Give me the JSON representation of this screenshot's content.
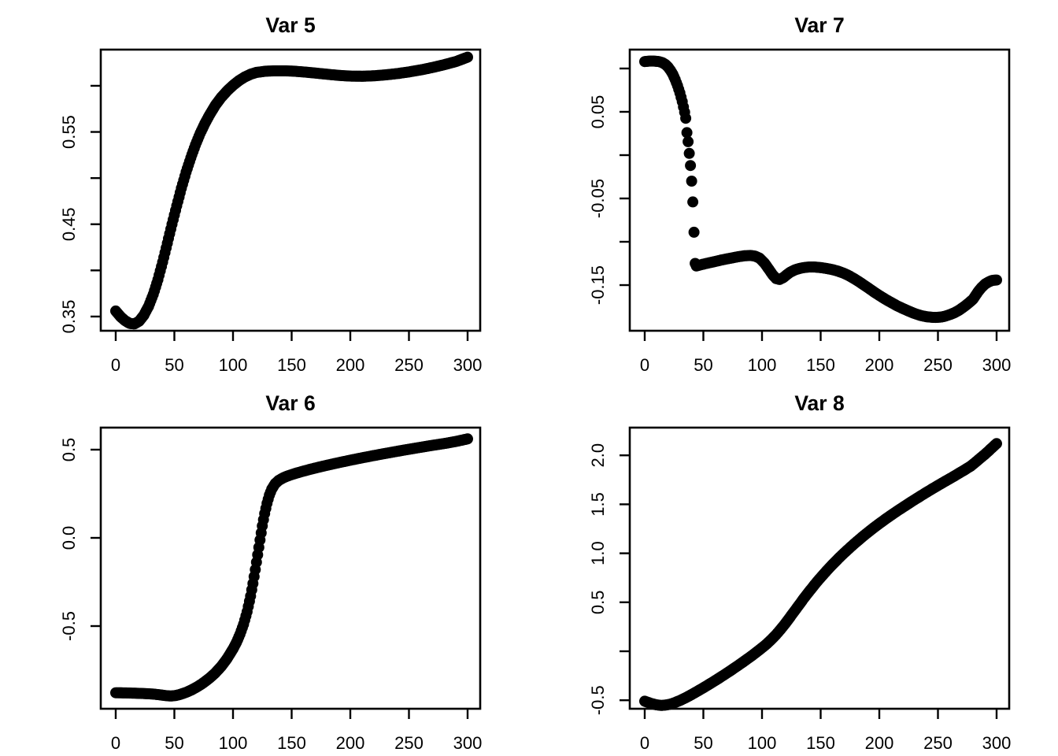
{
  "figure": {
    "background": "#ffffff",
    "point_color": "#000000",
    "axis_color": "#000000",
    "layout": "2x2 grid of scatter plots",
    "grid_lines": "off",
    "legend": "none"
  },
  "chart_data": [
    {
      "type": "scatter",
      "title": "Var 5",
      "position": "top-left",
      "xlabel": "",
      "ylabel": "",
      "x_range": [
        -12.75,
        310.74
      ],
      "y_range": [
        0.3346,
        0.6392
      ],
      "x_ticks": [
        {
          "value": 0,
          "label": "0"
        },
        {
          "value": 50,
          "label": "50"
        },
        {
          "value": 100,
          "label": "100"
        },
        {
          "value": 150,
          "label": "150"
        },
        {
          "value": 200,
          "label": "200"
        },
        {
          "value": 250,
          "label": "250"
        },
        {
          "value": 300,
          "label": "300"
        }
      ],
      "y_ticks": [
        {
          "value": 0.35,
          "label": "0.35"
        },
        {
          "value": 0.4,
          "label": ""
        },
        {
          "value": 0.45,
          "label": "0.45"
        },
        {
          "value": 0.5,
          "label": ""
        },
        {
          "value": 0.55,
          "label": "0.55"
        },
        {
          "value": 0.6,
          "label": ""
        }
      ],
      "points": [
        [
          0,
          0.356
        ],
        [
          4,
          0.35
        ],
        [
          8,
          0.3455
        ],
        [
          12,
          0.3425
        ],
        [
          16,
          0.342
        ],
        [
          20,
          0.345
        ],
        [
          24,
          0.3515
        ],
        [
          28,
          0.361
        ],
        [
          32,
          0.374
        ],
        [
          36,
          0.39
        ],
        [
          40,
          0.409
        ],
        [
          44,
          0.4295
        ],
        [
          48,
          0.45
        ],
        [
          52,
          0.47
        ],
        [
          56,
          0.489
        ],
        [
          60,
          0.5065
        ],
        [
          64,
          0.522
        ],
        [
          68,
          0.536
        ],
        [
          72,
          0.5485
        ],
        [
          76,
          0.559
        ],
        [
          80,
          0.5685
        ],
        [
          85,
          0.579
        ],
        [
          90,
          0.5875
        ],
        [
          95,
          0.5945
        ],
        [
          100,
          0.6005
        ],
        [
          105,
          0.6055
        ],
        [
          110,
          0.6095
        ],
        [
          115,
          0.6125
        ],
        [
          120,
          0.6145
        ],
        [
          128,
          0.6158
        ],
        [
          136,
          0.6162
        ],
        [
          144,
          0.6162
        ],
        [
          152,
          0.6158
        ],
        [
          160,
          0.615
        ],
        [
          170,
          0.6138
        ],
        [
          180,
          0.6125
        ],
        [
          190,
          0.6113
        ],
        [
          200,
          0.6105
        ],
        [
          210,
          0.6103
        ],
        [
          220,
          0.6108
        ],
        [
          230,
          0.6118
        ],
        [
          240,
          0.6132
        ],
        [
          250,
          0.615
        ],
        [
          260,
          0.6172
        ],
        [
          270,
          0.6198
        ],
        [
          280,
          0.6228
        ],
        [
          290,
          0.6262
        ],
        [
          300,
          0.631
        ]
      ]
    },
    {
      "type": "scatter",
      "title": "Var 7",
      "position": "top-right",
      "xlabel": "",
      "ylabel": "",
      "x_range": [
        -12.75,
        310.74
      ],
      "y_range": [
        -0.2027,
        0.1218
      ],
      "x_ticks": [
        {
          "value": 0,
          "label": "0"
        },
        {
          "value": 50,
          "label": "50"
        },
        {
          "value": 100,
          "label": "100"
        },
        {
          "value": 150,
          "label": "150"
        },
        {
          "value": 200,
          "label": "200"
        },
        {
          "value": 250,
          "label": "250"
        },
        {
          "value": 300,
          "label": "300"
        }
      ],
      "y_ticks": [
        {
          "value": 0.1,
          "label": ""
        },
        {
          "value": 0.05,
          "label": "0.05"
        },
        {
          "value": 0.0,
          "label": ""
        },
        {
          "value": -0.05,
          "label": "-0.05"
        },
        {
          "value": -0.1,
          "label": ""
        },
        {
          "value": -0.15,
          "label": "-0.15"
        }
      ],
      "points": [
        [
          0,
          0.108
        ],
        [
          4,
          0.1085
        ],
        [
          8,
          0.1085
        ],
        [
          12,
          0.108
        ],
        [
          15,
          0.1068
        ],
        [
          18,
          0.1043
        ],
        [
          20,
          0.1015
        ],
        [
          22,
          0.0978
        ],
        [
          24,
          0.0932
        ],
        [
          26,
          0.0873
        ],
        [
          28,
          0.0802
        ],
        [
          30,
          0.0718
        ],
        [
          32,
          0.0618
        ],
        [
          34,
          0.0495
        ],
        [
          35,
          0.0425
        ],
        [
          36,
          0.026
        ],
        [
          37,
          0.0155
        ],
        [
          38,
          0.002
        ],
        [
          39,
          -0.012
        ],
        [
          40,
          -0.03
        ],
        [
          41,
          -0.054
        ],
        [
          42,
          -0.089
        ],
        [
          43,
          -0.125
        ],
        [
          44,
          -0.128
        ],
        [
          48,
          -0.1265
        ],
        [
          52,
          -0.1252
        ],
        [
          56,
          -0.124
        ],
        [
          60,
          -0.1228
        ],
        [
          65,
          -0.1212
        ],
        [
          70,
          -0.1198
        ],
        [
          75,
          -0.1185
        ],
        [
          80,
          -0.1172
        ],
        [
          85,
          -0.1162
        ],
        [
          90,
          -0.1158
        ],
        [
          94,
          -0.1165
        ],
        [
          98,
          -0.119
        ],
        [
          102,
          -0.1245
        ],
        [
          106,
          -0.132
        ],
        [
          109,
          -0.138
        ],
        [
          112,
          -0.1425
        ],
        [
          115,
          -0.1435
        ],
        [
          118,
          -0.1415
        ],
        [
          121,
          -0.1382
        ],
        [
          124,
          -0.1352
        ],
        [
          128,
          -0.1325
        ],
        [
          132,
          -0.1308
        ],
        [
          136,
          -0.1297
        ],
        [
          140,
          -0.1292
        ],
        [
          145,
          -0.1292
        ],
        [
          150,
          -0.1298
        ],
        [
          155,
          -0.1308
        ],
        [
          160,
          -0.1322
        ],
        [
          165,
          -0.134
        ],
        [
          170,
          -0.1365
        ],
        [
          175,
          -0.1398
        ],
        [
          180,
          -0.1438
        ],
        [
          185,
          -0.1482
        ],
        [
          190,
          -0.1528
        ],
        [
          195,
          -0.1575
        ],
        [
          200,
          -0.162
        ],
        [
          205,
          -0.1662
        ],
        [
          210,
          -0.17
        ],
        [
          215,
          -0.1738
        ],
        [
          220,
          -0.177
        ],
        [
          225,
          -0.18
        ],
        [
          230,
          -0.1828
        ],
        [
          235,
          -0.185
        ],
        [
          240,
          -0.1865
        ],
        [
          245,
          -0.1872
        ],
        [
          248,
          -0.1873
        ],
        [
          252,
          -0.187
        ],
        [
          256,
          -0.186
        ],
        [
          260,
          -0.1842
        ],
        [
          264,
          -0.182
        ],
        [
          268,
          -0.179
        ],
        [
          272,
          -0.1752
        ],
        [
          276,
          -0.171
        ],
        [
          280,
          -0.1662
        ],
        [
          284,
          -0.158
        ],
        [
          287,
          -0.153
        ],
        [
          290,
          -0.149
        ],
        [
          293,
          -0.1465
        ],
        [
          296,
          -0.1448
        ],
        [
          298,
          -0.1443
        ],
        [
          300,
          -0.1442
        ]
      ]
    },
    {
      "type": "scatter",
      "title": "Var 6",
      "position": "bottom-left",
      "xlabel": "",
      "ylabel": "",
      "x_range": [
        -12.75,
        310.74
      ],
      "y_range": [
        -0.9687,
        0.625
      ],
      "x_ticks": [
        {
          "value": 0,
          "label": "0"
        },
        {
          "value": 50,
          "label": "50"
        },
        {
          "value": 100,
          "label": "100"
        },
        {
          "value": 150,
          "label": "150"
        },
        {
          "value": 200,
          "label": "200"
        },
        {
          "value": 250,
          "label": "250"
        },
        {
          "value": 300,
          "label": "300"
        }
      ],
      "y_ticks": [
        {
          "value": 0.5,
          "label": "0.5"
        },
        {
          "value": 0.0,
          "label": "0.0"
        },
        {
          "value": -0.5,
          "label": "-0.5"
        }
      ],
      "points": [
        [
          0,
          -0.878
        ],
        [
          8,
          -0.879
        ],
        [
          16,
          -0.8805
        ],
        [
          24,
          -0.8825
        ],
        [
          32,
          -0.8855
        ],
        [
          38,
          -0.89
        ],
        [
          43,
          -0.8948
        ],
        [
          47,
          -0.8965
        ],
        [
          51,
          -0.894
        ],
        [
          55,
          -0.8875
        ],
        [
          60,
          -0.876
        ],
        [
          65,
          -0.861
        ],
        [
          70,
          -0.8425
        ],
        [
          75,
          -0.8205
        ],
        [
          80,
          -0.795
        ],
        [
          85,
          -0.765
        ],
        [
          90,
          -0.7285
        ],
        [
          95,
          -0.684
        ],
        [
          100,
          -0.63
        ],
        [
          103,
          -0.5915
        ],
        [
          106,
          -0.546
        ],
        [
          109,
          -0.4895
        ],
        [
          112,
          -0.4185
        ],
        [
          115,
          -0.33
        ],
        [
          117,
          -0.259
        ],
        [
          119,
          -0.18
        ],
        [
          121,
          -0.096
        ],
        [
          123,
          -0.012
        ],
        [
          125,
          0.068
        ],
        [
          127,
          0.138
        ],
        [
          129,
          0.196
        ],
        [
          131,
          0.2425
        ],
        [
          133,
          0.2765
        ],
        [
          136,
          0.3075
        ],
        [
          139,
          0.3258
        ],
        [
          143,
          0.341
        ],
        [
          148,
          0.3542
        ],
        [
          154,
          0.3668
        ],
        [
          160,
          0.3782
        ],
        [
          167,
          0.3905
        ],
        [
          174,
          0.402
        ],
        [
          181,
          0.4128
        ],
        [
          188,
          0.4232
        ],
        [
          195,
          0.4332
        ],
        [
          202,
          0.4428
        ],
        [
          210,
          0.4535
        ],
        [
          218,
          0.4638
        ],
        [
          226,
          0.4738
        ],
        [
          234,
          0.4835
        ],
        [
          242,
          0.493
        ],
        [
          250,
          0.5022
        ],
        [
          258,
          0.5112
        ],
        [
          266,
          0.52
        ],
        [
          274,
          0.5285
        ],
        [
          282,
          0.5368
        ],
        [
          290,
          0.5465
        ],
        [
          295,
          0.5535
        ],
        [
          300,
          0.561
        ]
      ]
    },
    {
      "type": "scatter",
      "title": "Var 8",
      "position": "bottom-right",
      "xlabel": "",
      "ylabel": "",
      "x_range": [
        -12.75,
        310.74
      ],
      "y_range": [
        -0.5868,
        2.283
      ],
      "x_ticks": [
        {
          "value": 0,
          "label": "0"
        },
        {
          "value": 50,
          "label": "50"
        },
        {
          "value": 100,
          "label": "100"
        },
        {
          "value": 150,
          "label": "150"
        },
        {
          "value": 200,
          "label": "200"
        },
        {
          "value": 250,
          "label": "250"
        },
        {
          "value": 300,
          "label": "300"
        }
      ],
      "y_ticks": [
        {
          "value": 2.0,
          "label": "2.0"
        },
        {
          "value": 1.5,
          "label": "1.5"
        },
        {
          "value": 1.0,
          "label": "1.0"
        },
        {
          "value": 0.5,
          "label": "0.5"
        },
        {
          "value": 0.0,
          "label": ""
        },
        {
          "value": -0.5,
          "label": "-0.5"
        }
      ],
      "points": [
        [
          0,
          -0.51
        ],
        [
          5,
          -0.531
        ],
        [
          10,
          -0.547
        ],
        [
          14,
          -0.553
        ],
        [
          18,
          -0.549
        ],
        [
          22,
          -0.539
        ],
        [
          26,
          -0.523
        ],
        [
          30,
          -0.503
        ],
        [
          35,
          -0.474
        ],
        [
          40,
          -0.442
        ],
        [
          45,
          -0.408
        ],
        [
          50,
          -0.373
        ],
        [
          55,
          -0.337
        ],
        [
          60,
          -0.3
        ],
        [
          65,
          -0.262
        ],
        [
          70,
          -0.223
        ],
        [
          75,
          -0.183
        ],
        [
          80,
          -0.142
        ],
        [
          85,
          -0.1
        ],
        [
          90,
          -0.057
        ],
        [
          95,
          -0.012
        ],
        [
          100,
          0.035
        ],
        [
          104,
          0.075
        ],
        [
          108,
          0.12
        ],
        [
          112,
          0.17
        ],
        [
          116,
          0.225
        ],
        [
          120,
          0.285
        ],
        [
          124,
          0.35
        ],
        [
          128,
          0.415
        ],
        [
          132,
          0.48
        ],
        [
          136,
          0.545
        ],
        [
          140,
          0.607
        ],
        [
          144,
          0.667
        ],
        [
          148,
          0.725
        ],
        [
          152,
          0.78
        ],
        [
          156,
          0.833
        ],
        [
          160,
          0.884
        ],
        [
          165,
          0.945
        ],
        [
          170,
          1.003
        ],
        [
          175,
          1.058
        ],
        [
          180,
          1.111
        ],
        [
          185,
          1.162
        ],
        [
          190,
          1.211
        ],
        [
          195,
          1.258
        ],
        [
          200,
          1.303
        ],
        [
          206,
          1.355
        ],
        [
          212,
          1.405
        ],
        [
          218,
          1.453
        ],
        [
          224,
          1.5
        ],
        [
          230,
          1.546
        ],
        [
          236,
          1.591
        ],
        [
          242,
          1.635
        ],
        [
          248,
          1.678
        ],
        [
          254,
          1.72
        ],
        [
          260,
          1.761
        ],
        [
          266,
          1.803
        ],
        [
          272,
          1.846
        ],
        [
          278,
          1.89
        ],
        [
          284,
          1.95
        ],
        [
          290,
          2.01
        ],
        [
          295,
          2.065
        ],
        [
          300,
          2.12
        ]
      ]
    }
  ]
}
